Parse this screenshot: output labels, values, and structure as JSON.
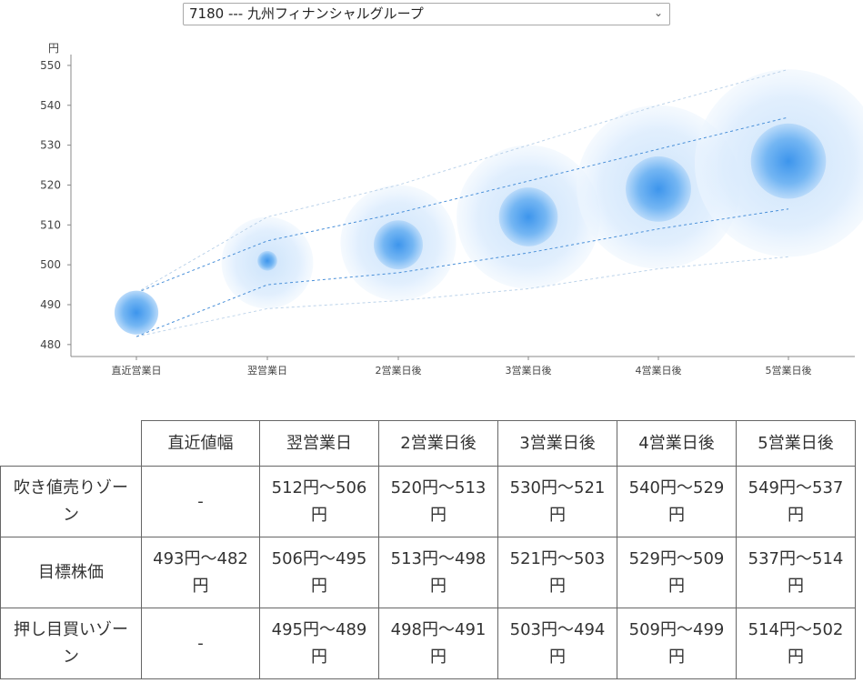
{
  "selector": {
    "value": "7180 --- 九州フィナンシャルグループ"
  },
  "chart_data": {
    "type": "bubble-range",
    "ylabel": "円",
    "ylim": [
      477,
      555
    ],
    "yticks": [
      480,
      490,
      500,
      510,
      520,
      530,
      540,
      550
    ],
    "categories": [
      "直近営業日",
      "翌営業日",
      "2営業日後",
      "3営業日後",
      "4営業日後",
      "5営業日後"
    ],
    "center": [
      488,
      501,
      505,
      512,
      519,
      526
    ],
    "outer_upper": [
      493,
      512,
      520,
      530,
      540,
      549
    ],
    "inner_upper": [
      493,
      506,
      513,
      521,
      529,
      537
    ],
    "inner_lower": [
      482,
      495,
      498,
      503,
      509,
      514
    ],
    "outer_lower": [
      482,
      489,
      491,
      494,
      499,
      502
    ],
    "colors": {
      "core": "#5aa9f0",
      "line": "#4a90d9",
      "outer_line": "#bcd3ea",
      "axis": "#888888"
    }
  },
  "table": {
    "corner": "",
    "headers": [
      "直近値幅",
      "翌営業日",
      "2営業日後",
      "3営業日後",
      "4営業日後",
      "5営業日後"
    ],
    "rows": [
      {
        "label": "吹き値売りゾーン",
        "values": [
          "-",
          "512円～506円",
          "520円～513円",
          "530円～521円",
          "540円～529円",
          "549円～537円"
        ]
      },
      {
        "label": "目標株価",
        "values": [
          "493円～482円",
          "506円～495円",
          "513円～498円",
          "521円～503円",
          "529円～509円",
          "537円～514円"
        ]
      },
      {
        "label": "押し目買いゾーン",
        "values": [
          "-",
          "495円～489円",
          "498円～491円",
          "503円～494円",
          "509円～499円",
          "514円～502円"
        ]
      }
    ]
  }
}
